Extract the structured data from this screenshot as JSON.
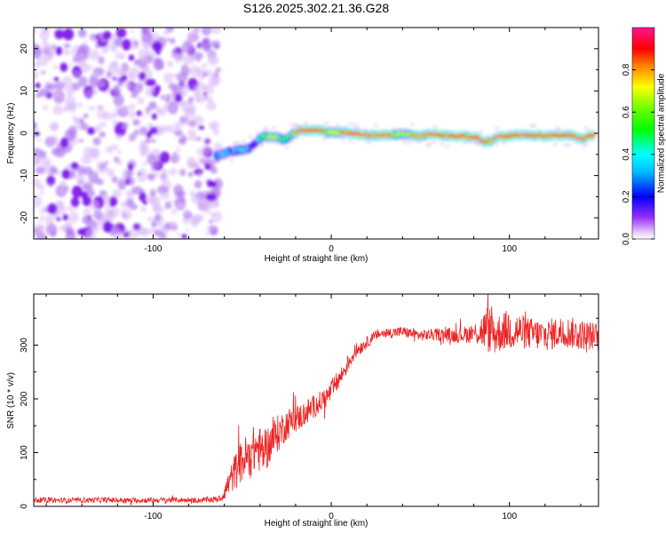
{
  "figure_title": "S126.2025.302.21.36.G28",
  "chart_data": [
    {
      "type": "heatmap",
      "title": "S126.2025.302.21.36.G28",
      "xlabel": "Height of straight line (km)",
      "ylabel": "Frequency (Hz)",
      "xlim": [
        -167,
        150
      ],
      "ylim": [
        -25,
        25
      ],
      "x_ticks": [
        -100,
        0,
        100
      ],
      "x_tick_labels": [
        "-100",
        "0",
        "100"
      ],
      "y_ticks": [
        -20,
        -10,
        0,
        10,
        20
      ],
      "y_tick_labels": [
        "-20",
        "-10",
        "0",
        "10",
        "20"
      ],
      "noise_region_x": [
        -167,
        -63
      ],
      "ridge": {
        "x": [
          -65,
          -58,
          -52,
          -46,
          -42,
          -38,
          -32,
          -26,
          -22,
          -18,
          -12,
          -6,
          0,
          6,
          12,
          18,
          24,
          30,
          36,
          42,
          46,
          50,
          56,
          62,
          68,
          74,
          78,
          82,
          86,
          90,
          94,
          100,
          106,
          112,
          118,
          124,
          130,
          136,
          140,
          145,
          148
        ],
        "frequency": [
          -5.5,
          -4.5,
          -4.0,
          -3.5,
          -2.0,
          -0.8,
          -0.8,
          -1.5,
          -0.3,
          0.5,
          0.7,
          0.6,
          0.2,
          0.3,
          0.0,
          -0.5,
          -0.6,
          -0.5,
          -0.3,
          -0.2,
          -0.3,
          -0.6,
          -0.4,
          -0.5,
          -0.6,
          -0.7,
          -0.8,
          -1.0,
          -2.0,
          -1.8,
          -0.8,
          -0.6,
          -0.5,
          -0.5,
          -0.6,
          -0.6,
          -0.5,
          -0.5,
          -1.5,
          -0.6,
          -0.6
        ],
        "amplitude": [
          0.35,
          0.3,
          0.35,
          0.3,
          0.2,
          0.55,
          0.7,
          0.45,
          0.6,
          0.85,
          0.95,
          0.9,
          0.6,
          0.8,
          0.95,
          0.9,
          0.85,
          0.9,
          0.7,
          0.6,
          0.85,
          0.8,
          0.9,
          0.85,
          0.9,
          0.95,
          0.8,
          0.9,
          0.95,
          0.8,
          0.9,
          0.95,
          0.9,
          0.95,
          0.85,
          0.9,
          0.95,
          0.9,
          0.85,
          0.95,
          0.9
        ]
      },
      "colorbar": {
        "label": "Normalized spectral amplitude",
        "range": [
          0.0,
          1.0
        ],
        "ticks": [
          0.0,
          0.2,
          0.4,
          0.6,
          0.8
        ],
        "tick_labels": [
          "0.0",
          "0.2",
          "0.4",
          "0.6",
          "0.8"
        ],
        "colormap": [
          "#ffffff",
          "#d9b3f5",
          "#8a2be2",
          "#0000ff",
          "#00ffff",
          "#00ff00",
          "#ffff00",
          "#ff8000",
          "#ff0000",
          "#ff1493"
        ]
      }
    },
    {
      "type": "line",
      "title": "",
      "xlabel": "Height of straight line (km)",
      "ylabel": "SNR (10 * v/v)",
      "xlim": [
        -167,
        150
      ],
      "ylim": [
        0,
        395
      ],
      "x_ticks": [
        -100,
        0,
        100
      ],
      "x_tick_labels": [
        "-100",
        "0",
        "100"
      ],
      "y_ticks": [
        0,
        100,
        200,
        300
      ],
      "y_tick_labels": [
        "0",
        "100",
        "200",
        "300"
      ],
      "color": "#ee2222",
      "series": [
        {
          "name": "SNR",
          "x": [
            -167,
            -150,
            -130,
            -110,
            -90,
            -75,
            -62,
            -58,
            -54,
            -50,
            -46,
            -42,
            -38,
            -34,
            -30,
            -26,
            -22,
            -18,
            -14,
            -10,
            -6,
            -2,
            2,
            6,
            10,
            14,
            18,
            22,
            26,
            30,
            40,
            50,
            60,
            70,
            80,
            88,
            92,
            96,
            100,
            110,
            120,
            130,
            140,
            150
          ],
          "y": [
            12,
            11,
            12,
            11,
            12,
            11,
            14,
            40,
            65,
            85,
            95,
            110,
            100,
            120,
            135,
            150,
            160,
            165,
            175,
            185,
            195,
            205,
            225,
            245,
            270,
            290,
            300,
            310,
            320,
            322,
            325,
            318,
            320,
            318,
            322,
            330,
            320,
            325,
            330,
            322,
            318,
            325,
            320,
            315
          ],
          "noise_amplitude": [
            5,
            5,
            5,
            5,
            5,
            5,
            6,
            22,
            35,
            40,
            45,
            45,
            40,
            40,
            35,
            30,
            28,
            25,
            25,
            22,
            20,
            20,
            20,
            18,
            16,
            14,
            12,
            10,
            10,
            10,
            10,
            10,
            12,
            14,
            18,
            45,
            40,
            35,
            40,
            30,
            30,
            30,
            28,
            26
          ]
        }
      ]
    }
  ]
}
